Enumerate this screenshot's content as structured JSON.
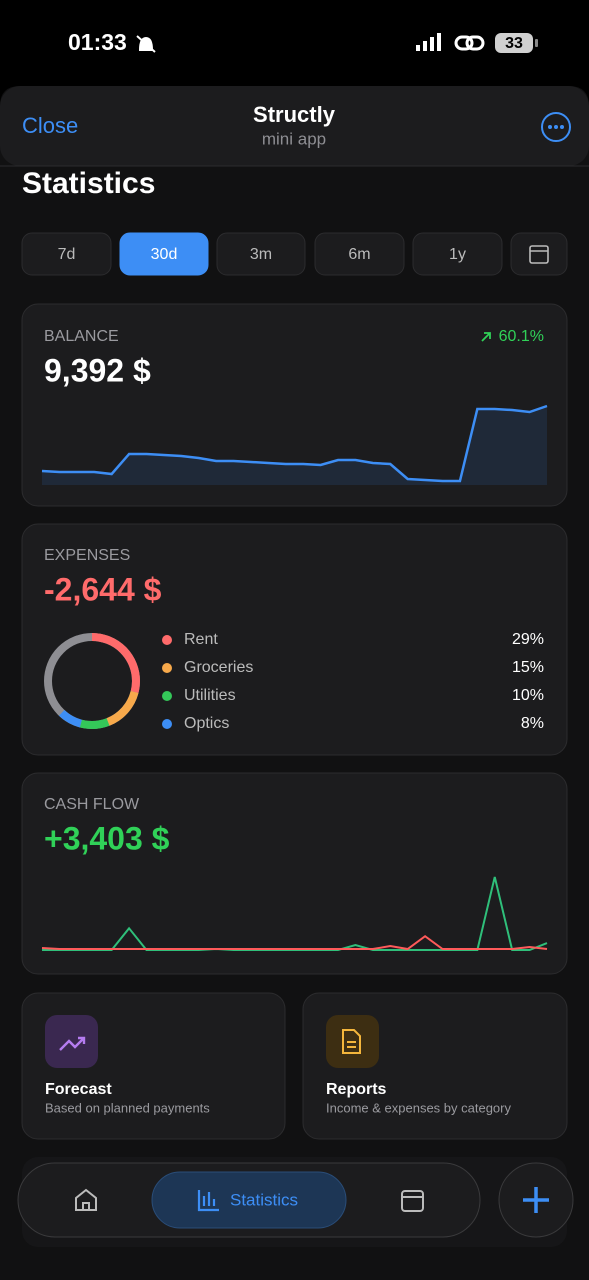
{
  "status_bar": {
    "time": "01:33",
    "battery": "33"
  },
  "header": {
    "close": "Close",
    "title": "Structly",
    "subtitle": "mini app"
  },
  "heading": "Statistics",
  "periods": {
    "options": [
      "7d",
      "30d",
      "3m",
      "6m",
      "1y"
    ],
    "selected": 1
  },
  "balance": {
    "label": "BALANCE",
    "value": "9,392 $",
    "change": "60.1%",
    "color": "#3d8ef5",
    "chart": {
      "ylim": [
        0,
        85
      ],
      "values": [
        14,
        13,
        13,
        13,
        11,
        31,
        31,
        30,
        29,
        27,
        24,
        24,
        23,
        22,
        21,
        21,
        20,
        25,
        25,
        22,
        21,
        6,
        5,
        4,
        4,
        76,
        76,
        75,
        73,
        79
      ]
    }
  },
  "expenses": {
    "label": "EXPENSES",
    "value": "-2,644 $",
    "items": [
      {
        "name": "Rent",
        "value": 29,
        "label": "29%",
        "color": "#ff6b6b"
      },
      {
        "name": "Groceries",
        "value": 15,
        "label": "15%",
        "color": "#f7a94b"
      },
      {
        "name": "Utilities",
        "value": 10,
        "label": "10%",
        "color": "#34c759"
      },
      {
        "name": "Optics",
        "value": 8,
        "label": "8%",
        "color": "#3d8ef5"
      }
    ]
  },
  "cash_flow": {
    "label": "CASH FLOW",
    "value": "+3,403 $",
    "chart": {
      "ylim": [
        0,
        80
      ],
      "series": [
        {
          "color": "#2fbf7a",
          "values": [
            1,
            1,
            1,
            1,
            1,
            23,
            1,
            1,
            1,
            1,
            2,
            1,
            1,
            1,
            1,
            1,
            1,
            1,
            6,
            1,
            1,
            1,
            1,
            1,
            1,
            1,
            75,
            1,
            1,
            8
          ]
        },
        {
          "color": "#ff5a5a",
          "values": [
            3,
            2,
            2,
            2,
            2,
            2,
            2,
            2,
            2,
            2,
            2,
            2,
            2,
            2,
            2,
            2,
            2,
            2,
            2,
            2,
            5,
            2,
            15,
            2,
            2,
            2,
            2,
            2,
            4,
            2
          ]
        }
      ]
    }
  },
  "tiles": [
    {
      "title": "Forecast",
      "subtitle": "Based on planned payments"
    },
    {
      "title": "Reports",
      "subtitle": "Income & expenses by category"
    }
  ],
  "tab_bar": {
    "active": "Statistics"
  }
}
